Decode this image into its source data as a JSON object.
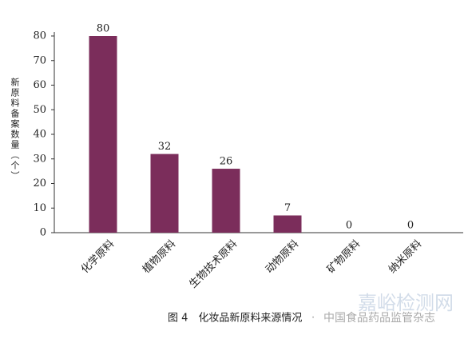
{
  "chart_data": {
    "type": "bar",
    "y_label": "新原料备案数量（个）",
    "categories": [
      "化学原料",
      "植物原料",
      "生物技术原料",
      "动物原料",
      "矿物原料",
      "纳米原料"
    ],
    "values": [
      80,
      32,
      26,
      7,
      0,
      0
    ],
    "color": "#7b2d5b",
    "ylim": [
      0,
      80
    ],
    "yticks": [
      0,
      10,
      20,
      30,
      40,
      50,
      60,
      70,
      80
    ],
    "grid": false,
    "caption": "图 4　化妆品新原料来源情况",
    "source": "中国食品药品监管杂志",
    "watermark": "嘉峪检测网"
  }
}
